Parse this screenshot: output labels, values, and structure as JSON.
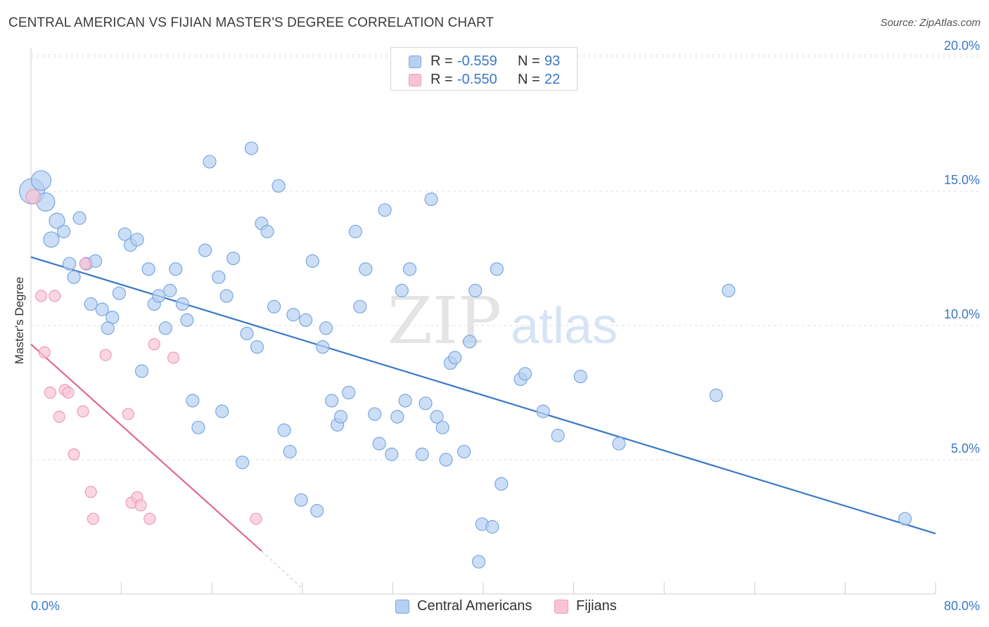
{
  "title": "CENTRAL AMERICAN VS FIJIAN MASTER'S DEGREE CORRELATION CHART",
  "source": "Source: ZipAtlas.com",
  "watermark": {
    "zip": "ZIP",
    "atlas": "atlas"
  },
  "legend": {
    "rows": [
      {
        "r_label": "R =",
        "r_value": "-0.559",
        "n_label": "N =",
        "n_value": "93"
      },
      {
        "r_label": "R =",
        "r_value": "-0.550",
        "n_label": "N =",
        "n_value": "22"
      }
    ]
  },
  "colors": {
    "blue": "#3a77c8",
    "blue_fill": "#b6d0f2",
    "blue_stroke": "#7aa7e0",
    "pink": "#e3679a",
    "pink_fill": "#f8c4d5",
    "pink_stroke": "#ef9ab8",
    "grid": "#e2e2e2",
    "axis_text": "#3a77c8"
  },
  "chart_data": {
    "type": "scatter",
    "title": "CENTRAL AMERICAN VS FIJIAN MASTER'S DEGREE CORRELATION CHART",
    "xlabel": "",
    "ylabel": "Master's Degree",
    "xlim": [
      0,
      80
    ],
    "ylim": [
      0,
      20.5
    ],
    "x_tick_labels": [
      "0.0%",
      "80.0%"
    ],
    "y_ticks": [
      5,
      10,
      15,
      20
    ],
    "y_tick_labels": [
      "5.0%",
      "10.0%",
      "15.0%",
      "20.0%"
    ],
    "grid": "horizontal-dashed",
    "series": [
      {
        "name": "Central Americans",
        "color": "blue",
        "r": -0.559,
        "n": 93,
        "trend": {
          "x": [
            0,
            80
          ],
          "y": [
            12.55,
            2.25
          ]
        },
        "points": [
          {
            "x": 0.1,
            "y": 15.0,
            "s": 18
          },
          {
            "x": 0.9,
            "y": 15.4,
            "s": 14
          },
          {
            "x": 1.3,
            "y": 14.6,
            "s": 13
          },
          {
            "x": 2.3,
            "y": 13.9,
            "s": 11
          },
          {
            "x": 1.8,
            "y": 13.2,
            "s": 11
          },
          {
            "x": 2.9,
            "y": 13.5,
            "s": 9
          },
          {
            "x": 4.3,
            "y": 14.0,
            "s": 9
          },
          {
            "x": 3.4,
            "y": 12.3,
            "s": 9
          },
          {
            "x": 4.9,
            "y": 12.3,
            "s": 9
          },
          {
            "x": 5.7,
            "y": 12.4,
            "s": 9
          },
          {
            "x": 3.8,
            "y": 11.8,
            "s": 9
          },
          {
            "x": 5.3,
            "y": 10.8,
            "s": 9
          },
          {
            "x": 6.3,
            "y": 10.6,
            "s": 9
          },
          {
            "x": 7.2,
            "y": 10.3,
            "s": 9
          },
          {
            "x": 6.8,
            "y": 9.9,
            "s": 9
          },
          {
            "x": 7.8,
            "y": 11.2,
            "s": 9
          },
          {
            "x": 8.3,
            "y": 13.4,
            "s": 9
          },
          {
            "x": 8.8,
            "y": 13.0,
            "s": 9
          },
          {
            "x": 9.4,
            "y": 13.2,
            "s": 9
          },
          {
            "x": 10.4,
            "y": 12.1,
            "s": 9
          },
          {
            "x": 9.8,
            "y": 8.3,
            "s": 9
          },
          {
            "x": 10.9,
            "y": 10.8,
            "s": 9
          },
          {
            "x": 11.3,
            "y": 11.1,
            "s": 9
          },
          {
            "x": 11.9,
            "y": 9.9,
            "s": 9
          },
          {
            "x": 12.3,
            "y": 11.3,
            "s": 9
          },
          {
            "x": 12.8,
            "y": 12.1,
            "s": 9
          },
          {
            "x": 13.4,
            "y": 10.8,
            "s": 9
          },
          {
            "x": 13.8,
            "y": 10.2,
            "s": 9
          },
          {
            "x": 14.3,
            "y": 7.2,
            "s": 9
          },
          {
            "x": 14.8,
            "y": 6.2,
            "s": 9
          },
          {
            "x": 15.4,
            "y": 12.8,
            "s": 9
          },
          {
            "x": 15.8,
            "y": 16.1,
            "s": 9
          },
          {
            "x": 16.6,
            "y": 11.8,
            "s": 9
          },
          {
            "x": 16.9,
            "y": 6.8,
            "s": 9
          },
          {
            "x": 17.3,
            "y": 11.1,
            "s": 9
          },
          {
            "x": 17.9,
            "y": 12.5,
            "s": 9
          },
          {
            "x": 18.7,
            "y": 4.9,
            "s": 9
          },
          {
            "x": 19.1,
            "y": 9.7,
            "s": 9
          },
          {
            "x": 19.5,
            "y": 16.6,
            "s": 9
          },
          {
            "x": 20.0,
            "y": 9.2,
            "s": 9
          },
          {
            "x": 20.4,
            "y": 13.8,
            "s": 9
          },
          {
            "x": 20.9,
            "y": 13.5,
            "s": 9
          },
          {
            "x": 21.5,
            "y": 10.7,
            "s": 9
          },
          {
            "x": 21.9,
            "y": 15.2,
            "s": 9
          },
          {
            "x": 22.4,
            "y": 6.1,
            "s": 9
          },
          {
            "x": 22.9,
            "y": 5.3,
            "s": 9
          },
          {
            "x": 23.2,
            "y": 10.4,
            "s": 9
          },
          {
            "x": 23.9,
            "y": 3.5,
            "s": 9
          },
          {
            "x": 24.3,
            "y": 10.2,
            "s": 9
          },
          {
            "x": 24.9,
            "y": 12.4,
            "s": 9
          },
          {
            "x": 25.3,
            "y": 3.1,
            "s": 9
          },
          {
            "x": 25.8,
            "y": 9.2,
            "s": 9
          },
          {
            "x": 26.1,
            "y": 9.9,
            "s": 9
          },
          {
            "x": 26.6,
            "y": 7.2,
            "s": 9
          },
          {
            "x": 27.1,
            "y": 6.3,
            "s": 9
          },
          {
            "x": 27.4,
            "y": 6.6,
            "s": 9
          },
          {
            "x": 28.1,
            "y": 7.5,
            "s": 9
          },
          {
            "x": 28.7,
            "y": 13.5,
            "s": 9
          },
          {
            "x": 29.1,
            "y": 10.7,
            "s": 9
          },
          {
            "x": 29.6,
            "y": 12.1,
            "s": 9
          },
          {
            "x": 30.4,
            "y": 6.7,
            "s": 9
          },
          {
            "x": 30.8,
            "y": 5.6,
            "s": 9
          },
          {
            "x": 31.3,
            "y": 14.3,
            "s": 9
          },
          {
            "x": 31.9,
            "y": 5.2,
            "s": 9
          },
          {
            "x": 32.4,
            "y": 6.6,
            "s": 9
          },
          {
            "x": 32.8,
            "y": 11.3,
            "s": 9
          },
          {
            "x": 33.1,
            "y": 7.2,
            "s": 9
          },
          {
            "x": 33.5,
            "y": 12.1,
            "s": 9
          },
          {
            "x": 34.6,
            "y": 5.2,
            "s": 9
          },
          {
            "x": 34.9,
            "y": 7.1,
            "s": 9
          },
          {
            "x": 35.4,
            "y": 14.7,
            "s": 9
          },
          {
            "x": 35.9,
            "y": 6.6,
            "s": 9
          },
          {
            "x": 36.4,
            "y": 6.2,
            "s": 9
          },
          {
            "x": 36.7,
            "y": 5.0,
            "s": 9
          },
          {
            "x": 37.1,
            "y": 8.6,
            "s": 9
          },
          {
            "x": 37.5,
            "y": 8.8,
            "s": 9
          },
          {
            "x": 38.3,
            "y": 5.3,
            "s": 9
          },
          {
            "x": 38.8,
            "y": 9.4,
            "s": 9
          },
          {
            "x": 39.3,
            "y": 11.3,
            "s": 9
          },
          {
            "x": 39.9,
            "y": 2.6,
            "s": 9
          },
          {
            "x": 39.6,
            "y": 1.2,
            "s": 9
          },
          {
            "x": 40.8,
            "y": 2.5,
            "s": 9
          },
          {
            "x": 41.2,
            "y": 12.1,
            "s": 9
          },
          {
            "x": 41.6,
            "y": 4.1,
            "s": 9
          },
          {
            "x": 43.3,
            "y": 8.0,
            "s": 9
          },
          {
            "x": 43.7,
            "y": 8.2,
            "s": 9
          },
          {
            "x": 45.3,
            "y": 6.8,
            "s": 9
          },
          {
            "x": 46.6,
            "y": 5.9,
            "s": 9
          },
          {
            "x": 48.6,
            "y": 8.1,
            "s": 9
          },
          {
            "x": 52.0,
            "y": 5.6,
            "s": 9
          },
          {
            "x": 60.6,
            "y": 7.4,
            "s": 9
          },
          {
            "x": 61.7,
            "y": 11.3,
            "s": 9
          },
          {
            "x": 77.3,
            "y": 2.8,
            "s": 9
          }
        ]
      },
      {
        "name": "Fijians",
        "color": "pink",
        "r": -0.55,
        "n": 22,
        "trend": {
          "x": [
            0,
            20.4
          ],
          "y": [
            9.3,
            1.6
          ]
        },
        "trend_dashed": {
          "x": [
            20.4,
            24.0
          ],
          "y": [
            1.6,
            0.2
          ]
        },
        "points": [
          {
            "x": 0.2,
            "y": 14.8,
            "s": 10
          },
          {
            "x": 0.9,
            "y": 11.1,
            "s": 8
          },
          {
            "x": 2.1,
            "y": 11.1,
            "s": 8
          },
          {
            "x": 1.2,
            "y": 9.0,
            "s": 8
          },
          {
            "x": 1.7,
            "y": 7.5,
            "s": 8
          },
          {
            "x": 2.5,
            "y": 6.6,
            "s": 8
          },
          {
            "x": 3.0,
            "y": 7.6,
            "s": 8
          },
          {
            "x": 3.3,
            "y": 7.5,
            "s": 8
          },
          {
            "x": 3.8,
            "y": 5.2,
            "s": 8
          },
          {
            "x": 4.6,
            "y": 6.8,
            "s": 8
          },
          {
            "x": 4.8,
            "y": 12.3,
            "s": 8
          },
          {
            "x": 5.3,
            "y": 3.8,
            "s": 8
          },
          {
            "x": 5.5,
            "y": 2.8,
            "s": 8
          },
          {
            "x": 6.6,
            "y": 8.9,
            "s": 8
          },
          {
            "x": 8.6,
            "y": 6.7,
            "s": 8
          },
          {
            "x": 8.9,
            "y": 3.4,
            "s": 8
          },
          {
            "x": 9.4,
            "y": 3.6,
            "s": 8
          },
          {
            "x": 9.7,
            "y": 3.3,
            "s": 8
          },
          {
            "x": 10.5,
            "y": 2.8,
            "s": 8
          },
          {
            "x": 10.9,
            "y": 9.3,
            "s": 8
          },
          {
            "x": 12.6,
            "y": 8.8,
            "s": 8
          },
          {
            "x": 19.9,
            "y": 2.8,
            "s": 8
          }
        ]
      }
    ]
  }
}
